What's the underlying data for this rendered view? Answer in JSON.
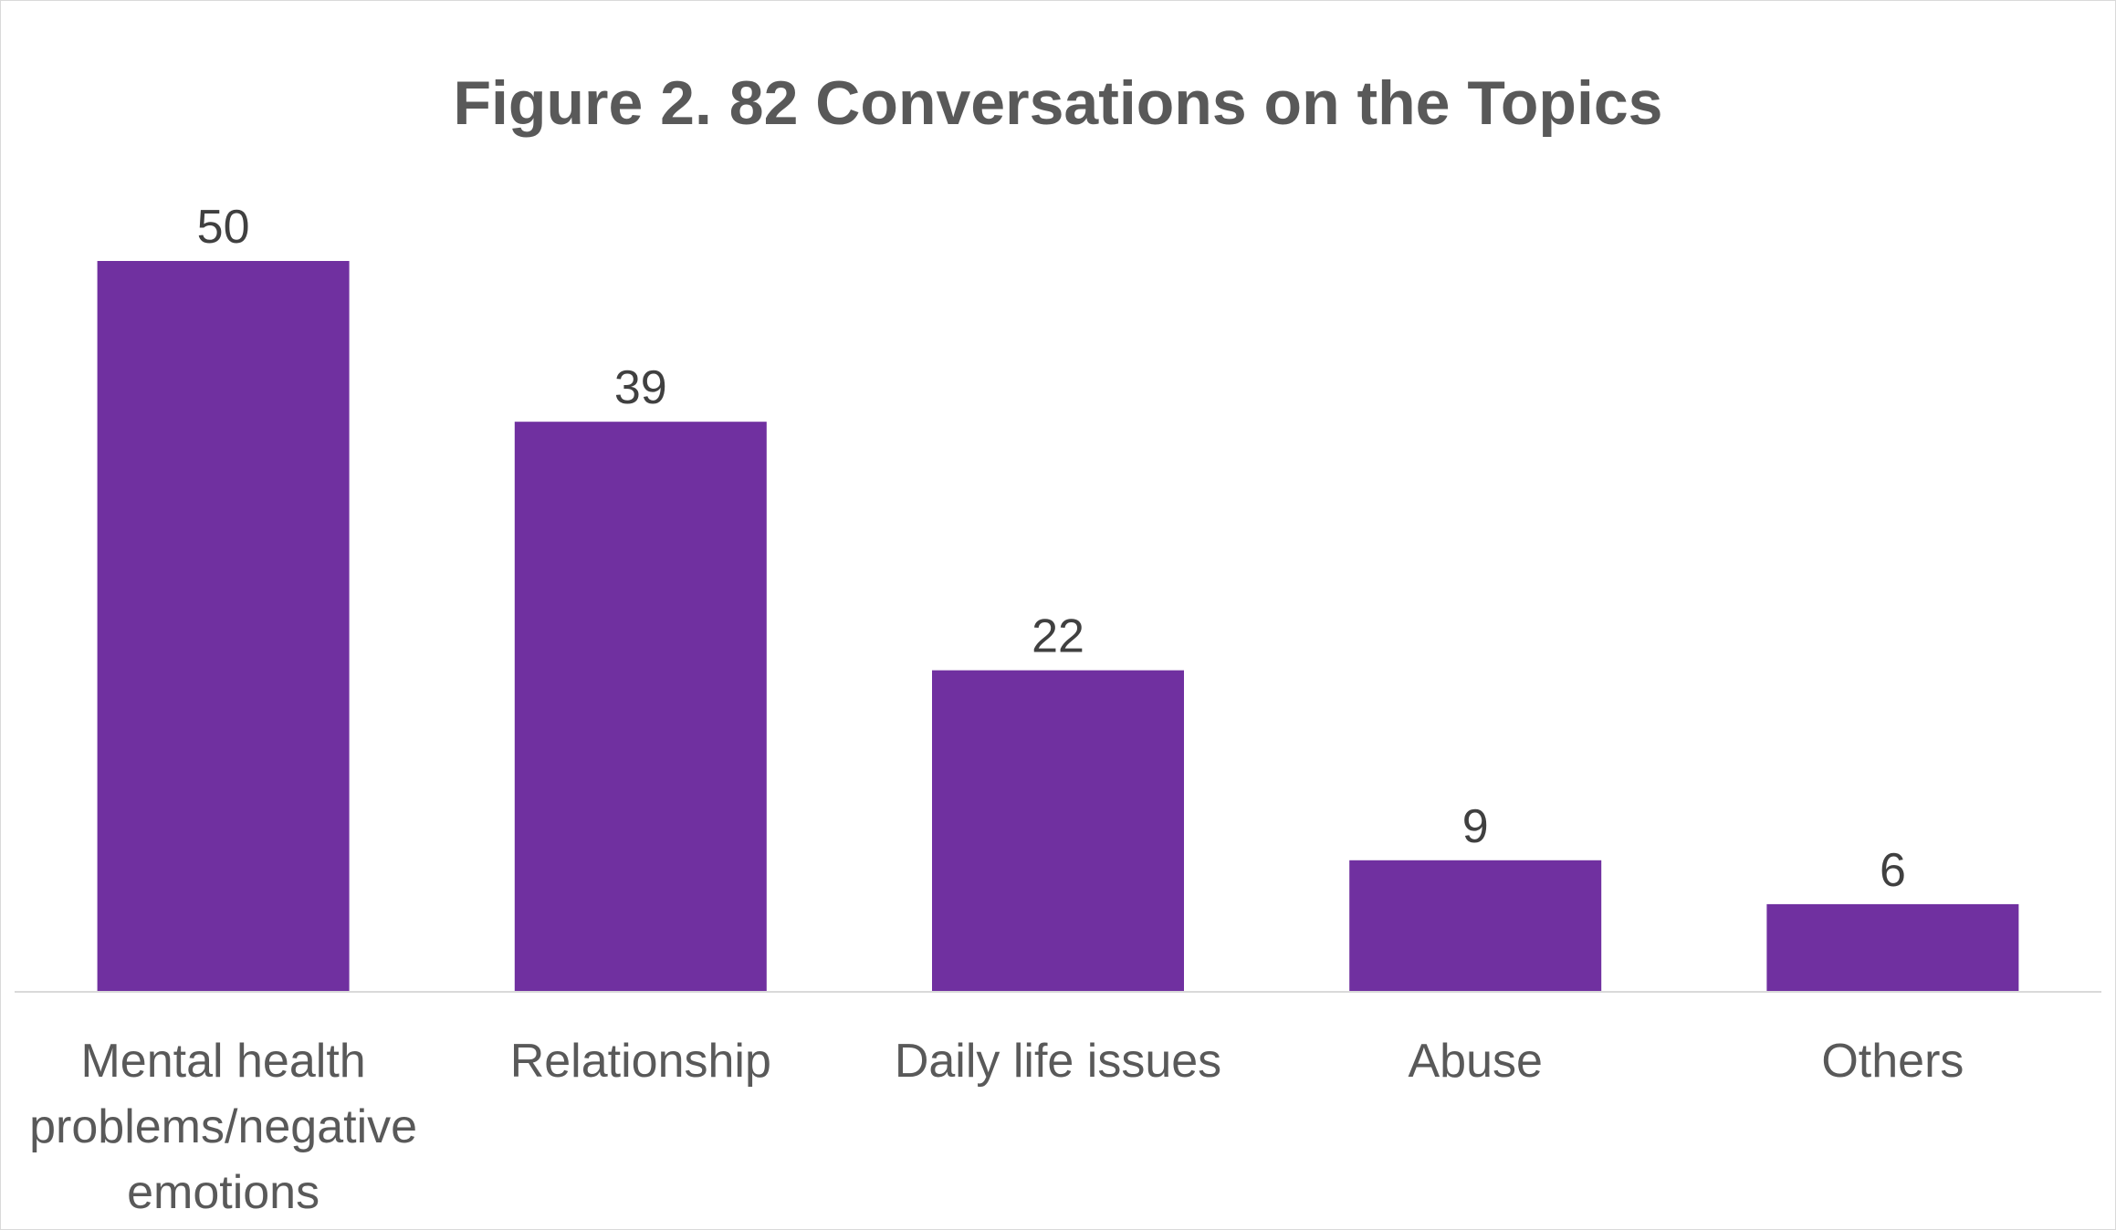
{
  "chart_data": {
    "type": "bar",
    "title": "Figure 2. 82 Conversations on the Topics",
    "categories": [
      "Mental health problems/negative emotions",
      "Relationship",
      "Daily life issues",
      "Abuse",
      "Others"
    ],
    "category_label_lines": [
      [
        "Mental health",
        "problems/negative",
        "emotions"
      ],
      [
        "Relationship"
      ],
      [
        "Daily life issues"
      ],
      [
        "Abuse"
      ],
      [
        "Others"
      ]
    ],
    "values": [
      50,
      39,
      22,
      9,
      6
    ],
    "data_labels": [
      "50",
      "39",
      "22",
      "9",
      "6"
    ],
    "xlabel": "",
    "ylabel": "",
    "ylim": [
      0,
      50
    ],
    "grid": false,
    "legend": "none",
    "bar_color": "#7030a0",
    "axis_color": "#d9d9d9"
  }
}
